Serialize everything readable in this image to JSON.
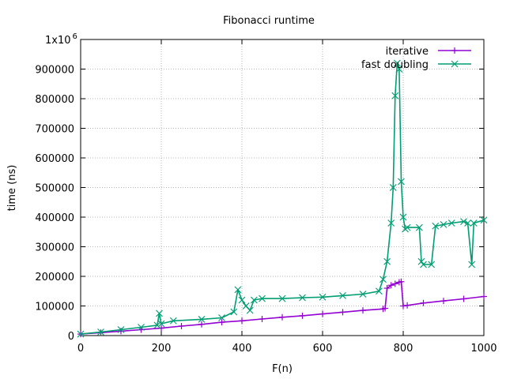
{
  "chart_data": {
    "type": "line",
    "title": "Fibonacci runtime",
    "xlabel": "F(n)",
    "ylabel": "time (ns)",
    "xlim": [
      0,
      1000
    ],
    "ylim": [
      0,
      1000000
    ],
    "x_ticks": [
      "0",
      "200",
      "400",
      "600",
      "800",
      "1000"
    ],
    "y_ticks": [
      "0",
      "100000",
      "200000",
      "300000",
      "400000",
      "500000",
      "600000",
      "700000",
      "800000",
      "900000"
    ],
    "y_top_tick": "1x10",
    "y_top_tick_exp": "6",
    "grid": true,
    "legend_position": "top-right",
    "series": [
      {
        "name": "iterative",
        "color": "#9400d3",
        "marker": "plus",
        "x": [
          0,
          50,
          100,
          150,
          200,
          250,
          300,
          350,
          400,
          450,
          500,
          550,
          600,
          650,
          700,
          750,
          755,
          760,
          770,
          780,
          790,
          795,
          800,
          810,
          850,
          900,
          950,
          1000
        ],
        "y": [
          5000,
          10000,
          15000,
          20000,
          25000,
          32000,
          38000,
          45000,
          50000,
          56000,
          62000,
          67000,
          73000,
          79000,
          85000,
          90000,
          92000,
          160000,
          170000,
          175000,
          180000,
          182000,
          100000,
          102000,
          110000,
          117000,
          124000,
          132000
        ]
      },
      {
        "name": "fast doubling",
        "color": "#009e73",
        "marker": "cross",
        "x": [
          0,
          50,
          100,
          150,
          190,
          195,
          200,
          230,
          300,
          350,
          380,
          390,
          400,
          410,
          420,
          430,
          450,
          500,
          550,
          600,
          650,
          700,
          740,
          750,
          760,
          770,
          775,
          780,
          785,
          790,
          795,
          800,
          805,
          810,
          840,
          845,
          850,
          870,
          880,
          900,
          920,
          950,
          960,
          970,
          975,
          1000
        ],
        "y": [
          5000,
          12000,
          20000,
          28000,
          35000,
          75000,
          40000,
          50000,
          55000,
          60000,
          80000,
          155000,
          120000,
          100000,
          85000,
          120000,
          125000,
          125000,
          128000,
          130000,
          135000,
          140000,
          150000,
          190000,
          250000,
          380000,
          500000,
          810000,
          920000,
          900000,
          520000,
          400000,
          360000,
          365000,
          365000,
          250000,
          240000,
          240000,
          370000,
          375000,
          380000,
          385000,
          380000,
          240000,
          380000,
          390000
        ]
      }
    ]
  }
}
